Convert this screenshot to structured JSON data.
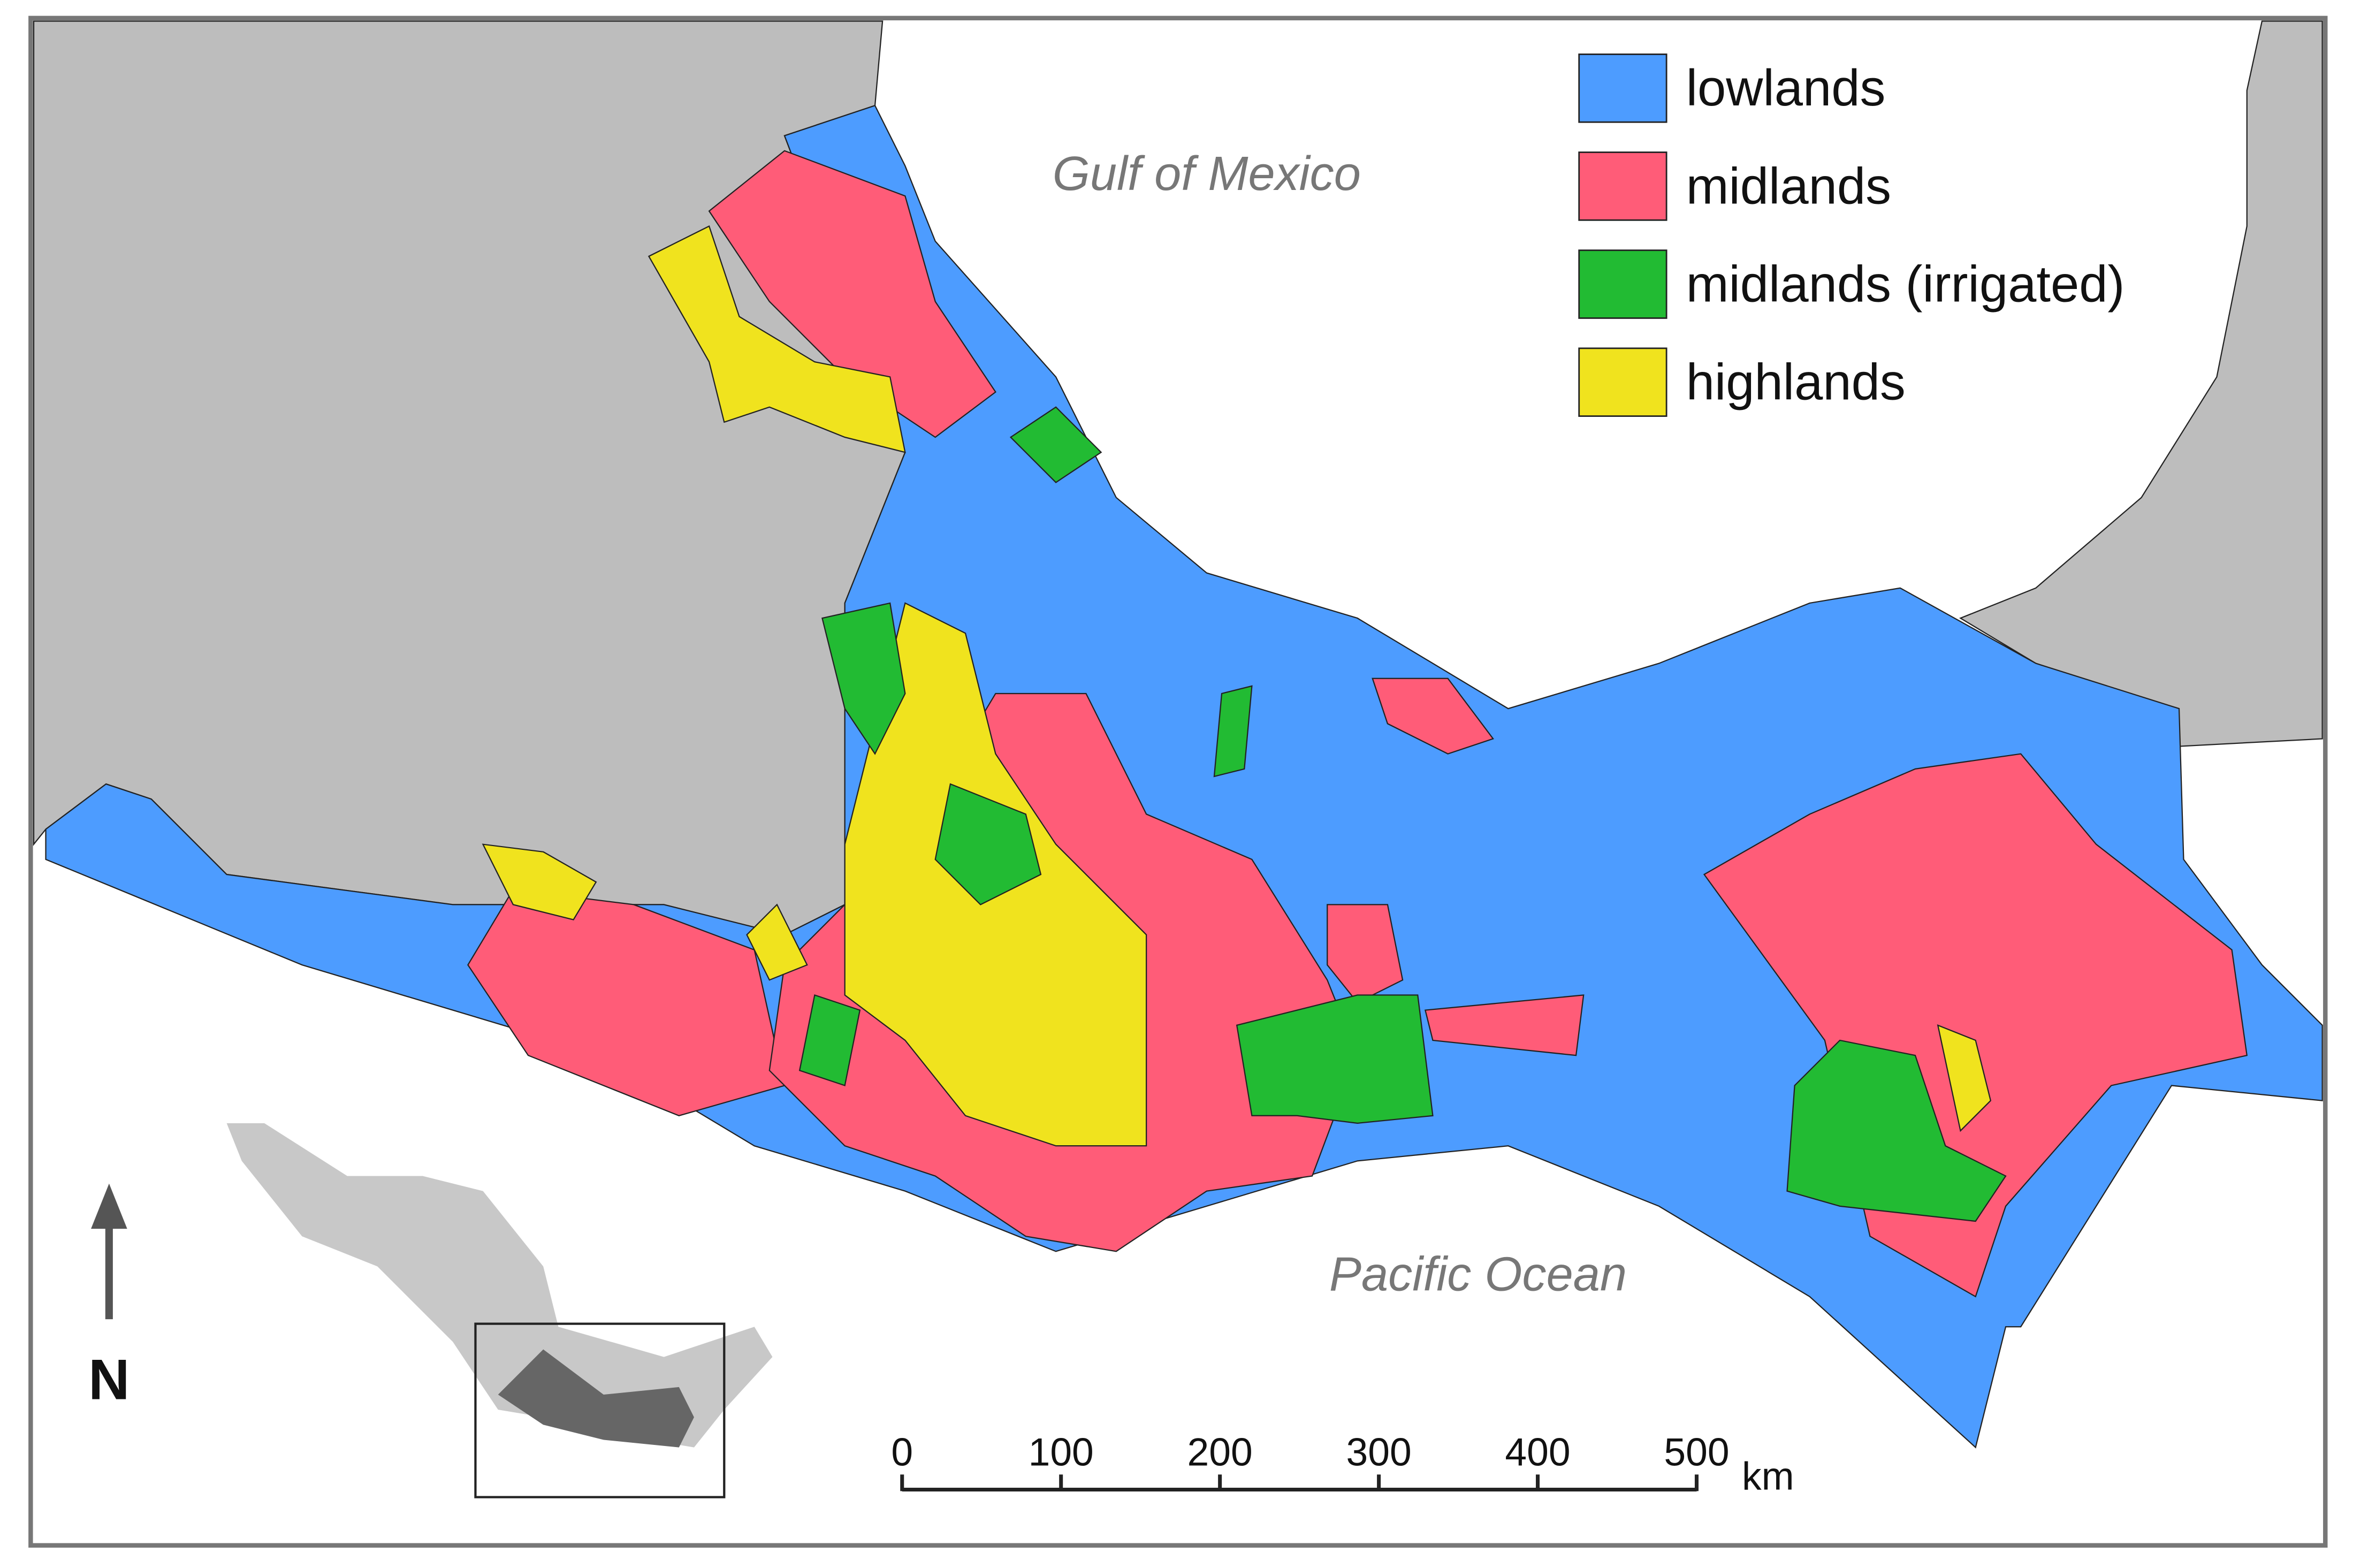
{
  "legend": {
    "items": [
      {
        "label": "lowlands",
        "color": "#4d9cff"
      },
      {
        "label": "midlands",
        "color": "#ff5c78"
      },
      {
        "label": "midlands (irrigated)",
        "color": "#22bb33"
      },
      {
        "label": "highlands",
        "color": "#f0e31e"
      }
    ]
  },
  "labels": {
    "gulf": "Gulf of Mexico",
    "pacific": "Pacific Ocean",
    "north": "N"
  },
  "scale_bar": {
    "ticks": [
      0,
      100,
      200,
      300,
      400,
      500
    ],
    "unit": "km"
  }
}
